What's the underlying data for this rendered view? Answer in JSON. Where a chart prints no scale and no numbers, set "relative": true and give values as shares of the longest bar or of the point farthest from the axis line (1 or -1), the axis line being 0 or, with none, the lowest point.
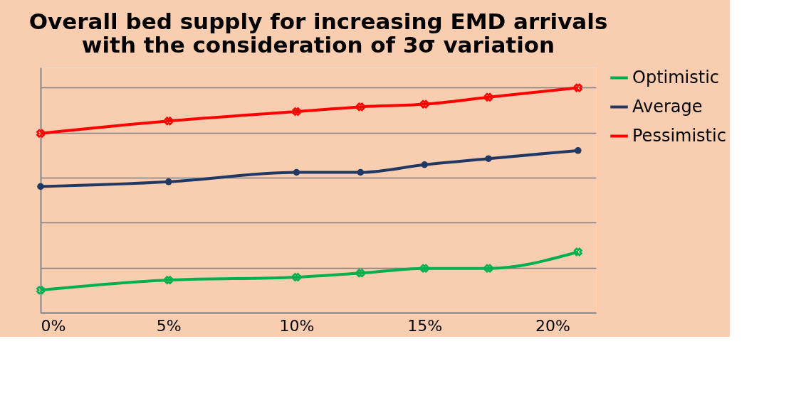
{
  "chart_data": {
    "type": "line",
    "title": "Overall bed supply for increasing EMD arrivals\nwith the consideration of 3σ variation",
    "x": [
      0,
      5,
      10,
      12.5,
      15,
      17.5,
      21
    ],
    "xlim": [
      0,
      21.7
    ],
    "xticks": [
      {
        "value": 0,
        "label": "0%"
      },
      {
        "value": 5,
        "label": "5%"
      },
      {
        "value": 10,
        "label": "10%"
      },
      {
        "value": 15,
        "label": "15%"
      },
      {
        "value": 20,
        "label": "20%"
      }
    ],
    "relative": true,
    "grid": "y",
    "legend": "right",
    "series": [
      {
        "name": "Optimistic",
        "color": "#00b050",
        "marker": "cross",
        "values": [
          0.1,
          0.145,
          0.158,
          0.176,
          0.197,
          0.197,
          0.27
        ]
      },
      {
        "name": "Average",
        "color": "#1f3864",
        "marker": "circle",
        "values": [
          0.561,
          0.582,
          0.624,
          0.624,
          0.658,
          0.685,
          0.721
        ]
      },
      {
        "name": "Pessimistic",
        "color": "#ff0000",
        "marker": "cross",
        "values": [
          0.797,
          0.852,
          0.894,
          0.915,
          0.927,
          0.958,
          1
        ]
      }
    ]
  }
}
